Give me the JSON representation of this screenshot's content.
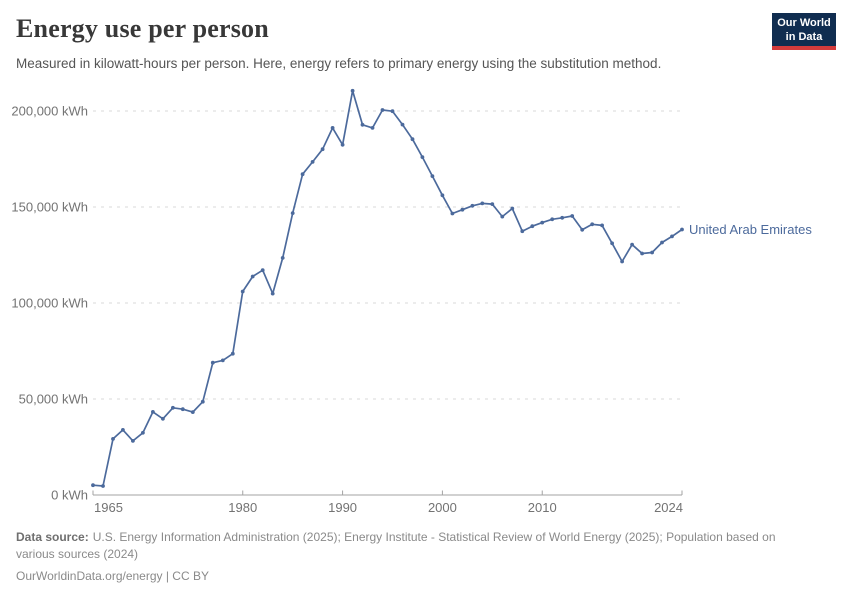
{
  "header": {
    "title": "Energy use per person",
    "subtitle": "Measured in kilowatt-hours per person. Here, energy refers to primary energy using the substitution method.",
    "logo": {
      "line1": "Our World",
      "line2": "in Data"
    }
  },
  "chart_data": {
    "type": "line",
    "title": "Energy use per person",
    "xlabel": "",
    "ylabel": "",
    "unit": "kWh",
    "grid": "horizontal-dashed",
    "legend_position": "line-end-label",
    "xlim": [
      1965,
      2024
    ],
    "ylim": [
      0,
      215000
    ],
    "x_ticks": [
      {
        "value": 1965,
        "label": "1965"
      },
      {
        "value": 1980,
        "label": "1980"
      },
      {
        "value": 1990,
        "label": "1990"
      },
      {
        "value": 2000,
        "label": "2000"
      },
      {
        "value": 2010,
        "label": "2010"
      },
      {
        "value": 2024,
        "label": "2024"
      }
    ],
    "y_ticks": [
      {
        "value": 0,
        "label": "0 kWh"
      },
      {
        "value": 50000,
        "label": "50,000 kWh"
      },
      {
        "value": 100000,
        "label": "100,000 kWh"
      },
      {
        "value": 150000,
        "label": "150,000 kWh"
      },
      {
        "value": 200000,
        "label": "200,000 kWh"
      }
    ],
    "series": [
      {
        "name": "United Arab Emirates",
        "color": "#4c6a9c",
        "x": [
          1965,
          1966,
          1967,
          1968,
          1969,
          1970,
          1971,
          1972,
          1973,
          1974,
          1975,
          1976,
          1977,
          1978,
          1979,
          1980,
          1981,
          1982,
          1983,
          1984,
          1985,
          1986,
          1987,
          1988,
          1989,
          1990,
          1991,
          1992,
          1993,
          1994,
          1995,
          1996,
          1997,
          1998,
          1999,
          2000,
          2001,
          2002,
          2003,
          2004,
          2005,
          2006,
          2007,
          2008,
          2009,
          2010,
          2011,
          2012,
          2013,
          2014,
          2015,
          2016,
          2017,
          2018,
          2019,
          2020,
          2021,
          2022,
          2023,
          2024
        ],
        "values": [
          5100,
          4700,
          29200,
          33900,
          28200,
          32400,
          43300,
          39700,
          45400,
          44700,
          43200,
          48600,
          68900,
          70100,
          73600,
          106000,
          113800,
          117100,
          104900,
          123500,
          146800,
          167100,
          173500,
          180100,
          191200,
          182400,
          210500,
          192800,
          191200,
          200500,
          199900,
          192900,
          185300,
          176000,
          166100,
          156100,
          146600,
          148600,
          150600,
          151900,
          151500,
          145000,
          149200,
          137400,
          140000,
          141900,
          143600,
          144400,
          145300,
          138100,
          141000,
          140400,
          131100,
          121600,
          130400,
          125800,
          126300,
          131500,
          134700,
          138300
        ]
      }
    ]
  },
  "footer": {
    "source_label": "Data source:",
    "source_text": "U.S. Energy Information Administration (2025); Energy Institute - Statistical Review of World Energy (2025); Population based on various sources (2024)",
    "license": "OurWorldinData.org/energy | CC BY"
  },
  "colors": {
    "line": "#4c6a9c",
    "grid": "#d9d9d9",
    "axis": "#a3a3a3",
    "tick_text": "#737373",
    "logo_bg": "#102d50",
    "logo_bar": "#d43b3b"
  }
}
